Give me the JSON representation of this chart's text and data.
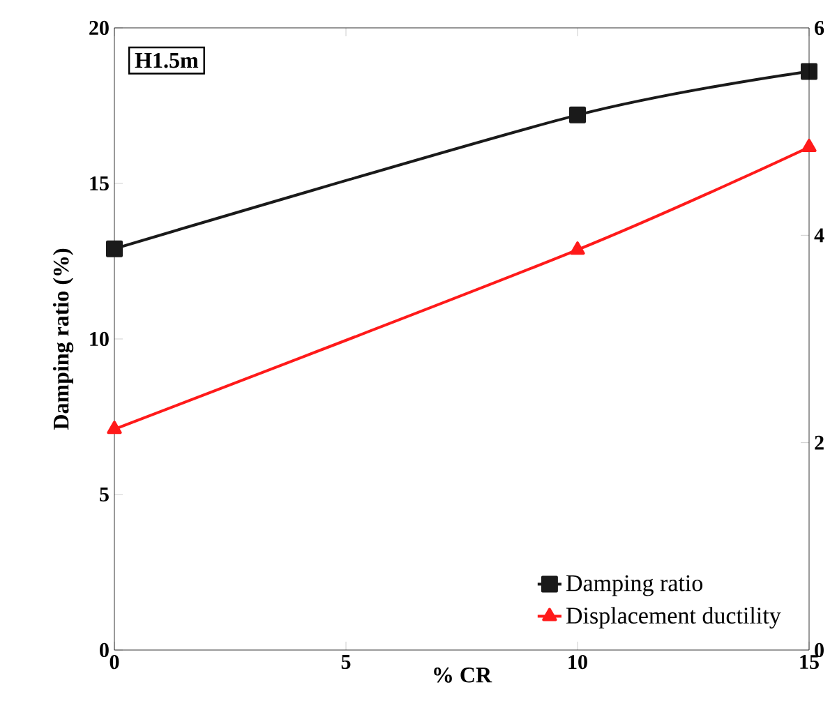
{
  "chart_data": {
    "type": "line",
    "x": [
      0,
      10,
      15
    ],
    "xlabel": "% CR",
    "ylabel": "Damping ratio  (%)",
    "xlim": [
      0,
      15
    ],
    "xticks": [
      0,
      5,
      10,
      15
    ],
    "ylim": [
      0,
      20
    ],
    "yticks": [
      0,
      5,
      10,
      15,
      20
    ],
    "y2lim": [
      0,
      6
    ],
    "y2ticks": [
      0,
      2,
      4,
      6
    ],
    "annotations": [
      "H1.5m"
    ],
    "legend": "bottom right",
    "grid": false,
    "series": [
      {
        "name": "Damping ratio",
        "color": "#1a1a1a",
        "marker": "square",
        "values": [
          12.9,
          17.2,
          18.6
        ]
      },
      {
        "name": "Displacement  ductility",
        "color": "#ff1a1a",
        "marker": "triangle",
        "axis": "y2",
        "values": [
          2.13,
          3.86,
          4.85
        ]
      }
    ]
  }
}
